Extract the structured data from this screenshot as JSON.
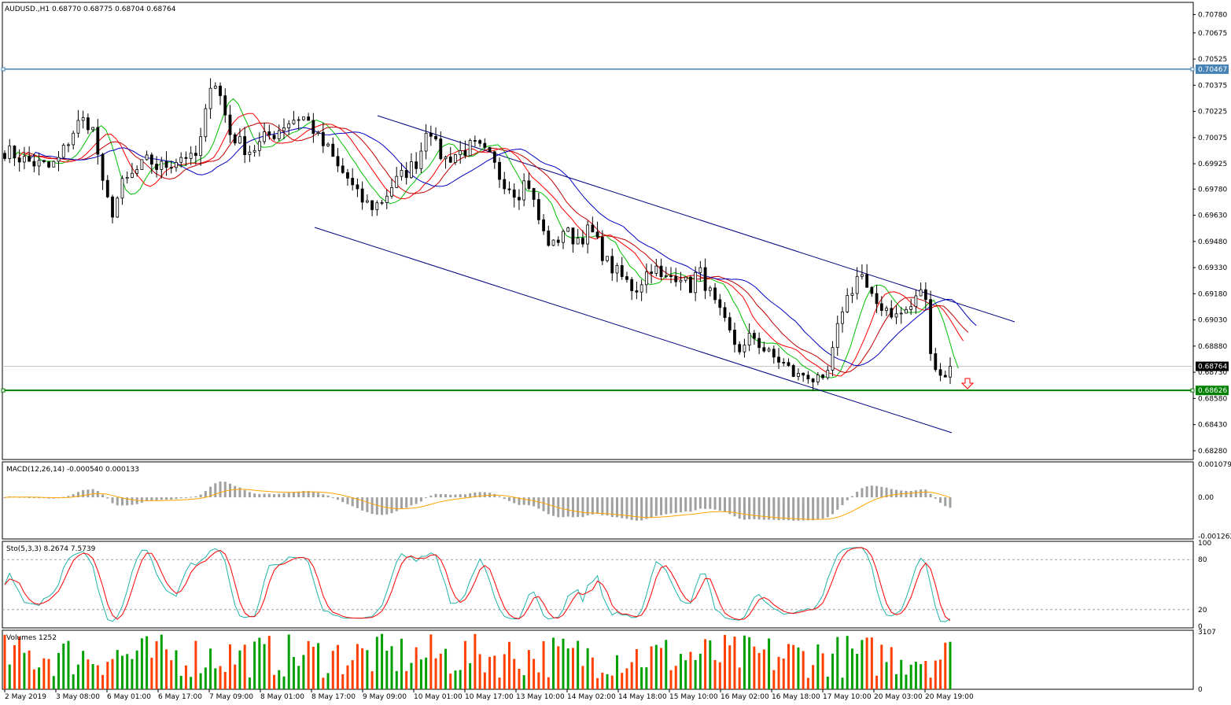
{
  "colors": {
    "background": "#ffffff",
    "frame": "#000000",
    "candle": "#000000",
    "ma_fast": "#00c000",
    "ma_mid": "#ff0000",
    "ma_slow_red": "#c00000",
    "ma_slow": "#0000c0",
    "channel": "#000080",
    "resistance_line": "#4682b4",
    "support_line": "#008000",
    "macd_hist": "#a0a0a0",
    "macd_signal": "#ffa500",
    "stoch_main": "#20b2aa",
    "stoch_signal": "#ff0000",
    "vol_up": "#00a000",
    "vol_down": "#ff4000",
    "arrow": "#ff0000",
    "current_price_label": "#000000"
  },
  "chart_data": [
    {
      "type": "candlestick",
      "title": "AUDUSD.,H1  0.68770 0.68775 0.68704 0.68764",
      "price_scale": [
        "0.70780",
        "0.70675",
        "0.70525",
        "0.70375",
        "0.70225",
        "0.70075",
        "0.69925",
        "0.69780",
        "0.69630",
        "0.69480",
        "0.69330",
        "0.69180",
        "0.69030",
        "0.68880",
        "0.68730",
        "0.68580",
        "0.68430",
        "0.68280"
      ],
      "ylim": [
        0.6823,
        0.7085
      ],
      "horizontal_lines": [
        {
          "name": "resistance",
          "value": 0.70467,
          "label": "0.70467"
        },
        {
          "name": "support",
          "value": 0.68626,
          "label": "0.68626"
        }
      ],
      "current_price": {
        "value": 0.68764,
        "label": "0.68764"
      },
      "close_path": [
        0.7,
        0.6998,
        0.6995,
        0.6993,
        0.6992,
        0.699,
        0.6995,
        0.7005,
        0.7015,
        0.7018,
        0.701,
        0.6975,
        0.6965,
        0.698,
        0.6985,
        0.699,
        0.6995,
        0.699,
        0.6992,
        0.6995,
        0.6998,
        0.6993,
        0.701,
        0.7045,
        0.703,
        0.701,
        0.7005,
        0.7,
        0.7002,
        0.7008,
        0.701,
        0.7015,
        0.7018,
        0.702,
        0.7015,
        0.7005,
        0.7,
        0.699,
        0.6985,
        0.6975,
        0.697,
        0.6968,
        0.6972,
        0.698,
        0.6985,
        0.699,
        0.6995,
        0.7018,
        0.7,
        0.6995,
        0.6998,
        0.7,
        0.7003,
        0.7,
        0.6995,
        0.6985,
        0.698,
        0.6975,
        0.6985,
        0.6965,
        0.695,
        0.6945,
        0.6955,
        0.695,
        0.695,
        0.6955,
        0.6945,
        0.6935,
        0.693,
        0.6925,
        0.692,
        0.6928,
        0.6935,
        0.6925,
        0.6928,
        0.693,
        0.692,
        0.6932,
        0.6922,
        0.691,
        0.69,
        0.689,
        0.6885,
        0.6895,
        0.6888,
        0.6882,
        0.688,
        0.6875,
        0.687,
        0.6873,
        0.6868,
        0.6865,
        0.6885,
        0.691,
        0.692,
        0.6932,
        0.6915,
        0.6912,
        0.691,
        0.6905,
        0.6908,
        0.6912,
        0.6925,
        0.688,
        0.687,
        0.68764
      ],
      "channel_upper": [
        [
          480,
          147
        ],
        [
          1290,
          409
        ]
      ],
      "channel_lower": [
        [
          400,
          289
        ],
        [
          1210,
          550
        ]
      ],
      "annotation": {
        "type": "down-arrow",
        "x": 1230,
        "y": 488
      },
      "moving_averages": [
        "green fast MA",
        "red MA",
        "dark red MA",
        "blue slow MA"
      ]
    },
    {
      "type": "bar",
      "title": "MACD(12,26,14) -0.000540 0.000133",
      "scale": [
        "0.001079",
        "0.00",
        "-0.001262"
      ],
      "ylim": [
        -0.00135,
        0.00115
      ]
    },
    {
      "type": "line",
      "title": "Sto(5,3,3) 8.2674 7.5739",
      "scale": [
        "100",
        "80",
        "20",
        "0"
      ],
      "ylim": [
        0,
        100
      ]
    },
    {
      "type": "bar",
      "title": "Volumes 1252",
      "scale": [
        "3107",
        "0"
      ],
      "ylim": [
        0,
        3107
      ]
    }
  ],
  "time_axis": [
    "2 May 2019",
    "3 May 08:00",
    "6 May 01:00",
    "6 May 17:00",
    "7 May 09:00",
    "8 May 01:00",
    "8 May 17:00",
    "9 May 09:00",
    "10 May 01:00",
    "10 May 17:00",
    "13 May 10:00",
    "14 May 02:00",
    "14 May 18:00",
    "15 May 10:00",
    "16 May 02:00",
    "16 May 18:00",
    "17 May 10:00",
    "20 May 03:00",
    "20 May 19:00"
  ]
}
